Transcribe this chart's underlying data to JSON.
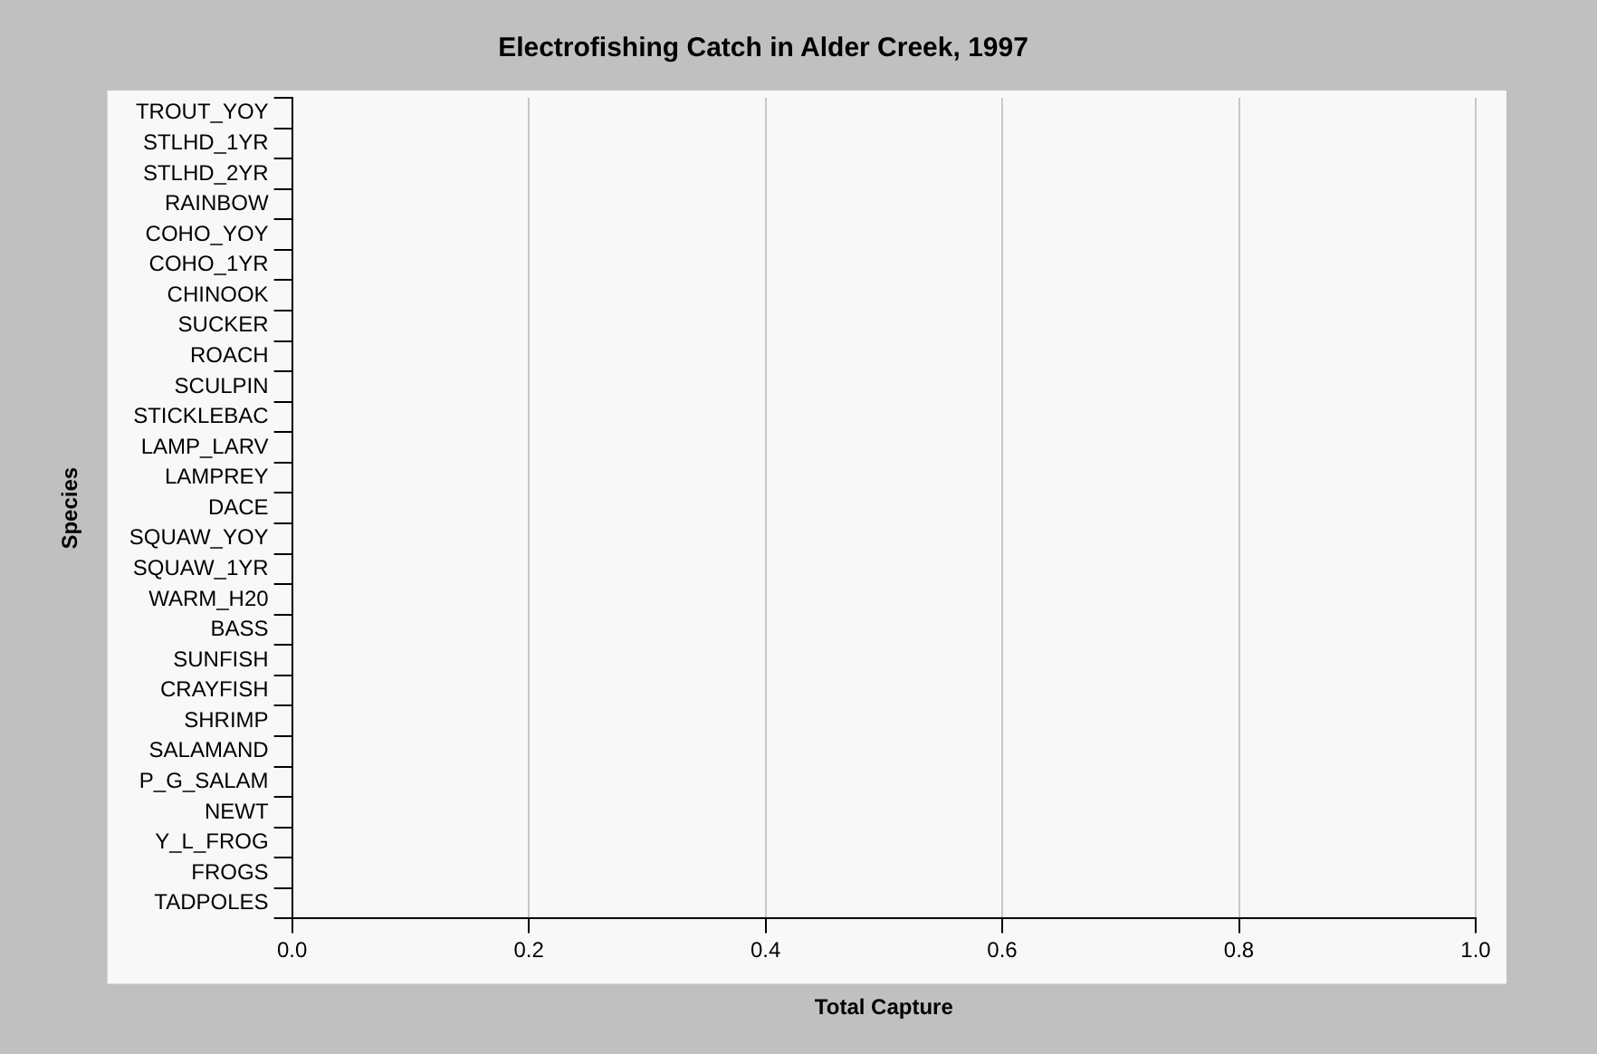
{
  "chart_data": {
    "type": "bar",
    "orientation": "horizontal",
    "title": "Electrofishing Catch in Alder Creek, 1997",
    "xlabel": "Total Capture",
    "ylabel": "Species",
    "categories": [
      "TROUT_YOY",
      "STLHD_1YR",
      "STLHD_2YR",
      "RAINBOW",
      "COHO_YOY",
      "COHO_1YR",
      "CHINOOK",
      "SUCKER",
      "ROACH",
      "SCULPIN",
      "STICKLEBAC",
      "LAMP_LARV",
      "LAMPREY",
      "DACE",
      "SQUAW_YOY",
      "SQUAW_1YR",
      "WARM_H20",
      "BASS",
      "SUNFISH",
      "CRAYFISH",
      "SHRIMP",
      "SALAMAND",
      "P_G_SALAM",
      "NEWT",
      "Y_L_FROG",
      "FROGS",
      "TADPOLES"
    ],
    "values": [
      0,
      0,
      0,
      0,
      0,
      0,
      0,
      0,
      0,
      0,
      0,
      0,
      0,
      0,
      0,
      0,
      0,
      0,
      0,
      0,
      0,
      0,
      0,
      0,
      0,
      0,
      0
    ],
    "xlim": [
      0,
      1
    ],
    "xticks": [
      {
        "value": 0,
        "label": "0.0"
      },
      {
        "value": 0.2,
        "label": "0.2"
      },
      {
        "value": 0.4,
        "label": "0.4"
      },
      {
        "value": 0.6,
        "label": "0.6"
      },
      {
        "value": 0.8,
        "label": "0.8"
      },
      {
        "value": 1,
        "label": "1.0"
      }
    ],
    "grid": "x"
  }
}
